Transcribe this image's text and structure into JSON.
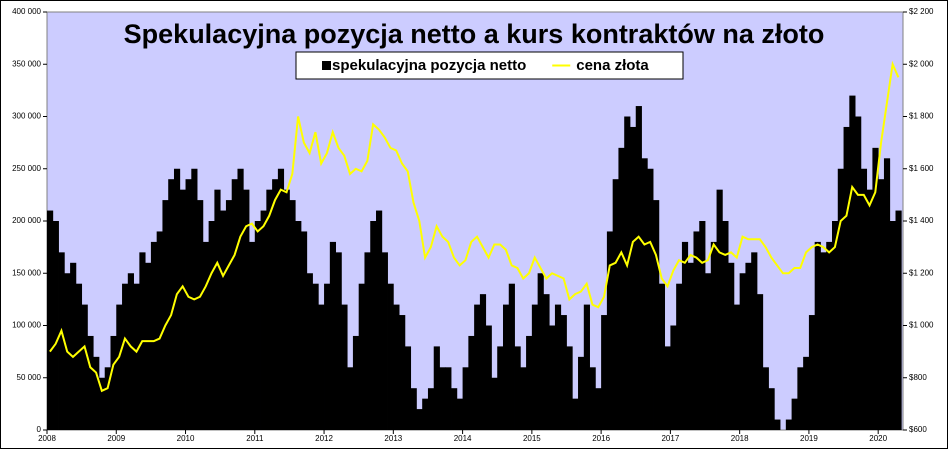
{
  "chart_data": {
    "type": "bar-line",
    "title": "Spekulacyjna pozycja netto a kurs kontraktów na złoto",
    "legend": "top",
    "categories": [
      "2008",
      null,
      null,
      null,
      null,
      null,
      null,
      null,
      null,
      null,
      null,
      null,
      "2009",
      null,
      null,
      null,
      null,
      null,
      null,
      null,
      null,
      null,
      null,
      null,
      "2010",
      null,
      null,
      null,
      null,
      null,
      null,
      null,
      null,
      null,
      null,
      null,
      "2011",
      null,
      null,
      null,
      null,
      null,
      null,
      null,
      null,
      null,
      null,
      null,
      "2012",
      null,
      null,
      null,
      null,
      null,
      null,
      null,
      null,
      null,
      null,
      null,
      "2013",
      null,
      null,
      null,
      null,
      null,
      null,
      null,
      null,
      null,
      null,
      null,
      "2014",
      null,
      null,
      null,
      null,
      null,
      null,
      null,
      null,
      null,
      null,
      null,
      "2015",
      null,
      null,
      null,
      null,
      null,
      null,
      null,
      null,
      null,
      null,
      null,
      "2016",
      null,
      null,
      null,
      null,
      null,
      null,
      null,
      null,
      null,
      null,
      null,
      "2017",
      null,
      null,
      null,
      null,
      null,
      null,
      null,
      null,
      null,
      null,
      null,
      "2018",
      null,
      null,
      null,
      null,
      null,
      null,
      null,
      null,
      null,
      null,
      null,
      "2019",
      null,
      null,
      null,
      null,
      null,
      null,
      null,
      null,
      null,
      null,
      null,
      "2020",
      null,
      null,
      null
    ],
    "series": [
      {
        "name": "spekulacyjna pozycja netto",
        "color": "#000000",
        "kind": "bar",
        "values": [
          210000,
          200000,
          170000,
          150000,
          160000,
          140000,
          120000,
          90000,
          70000,
          50000,
          60000,
          90000,
          120000,
          140000,
          150000,
          140000,
          170000,
          160000,
          180000,
          190000,
          220000,
          240000,
          250000,
          230000,
          240000,
          250000,
          220000,
          180000,
          200000,
          230000,
          210000,
          220000,
          240000,
          250000,
          230000,
          180000,
          200000,
          210000,
          230000,
          240000,
          250000,
          230000,
          220000,
          200000,
          190000,
          150000,
          140000,
          120000,
          140000,
          180000,
          170000,
          120000,
          60000,
          90000,
          140000,
          170000,
          200000,
          210000,
          170000,
          140000,
          120000,
          110000,
          80000,
          40000,
          20000,
          30000,
          40000,
          80000,
          60000,
          60000,
          40000,
          30000,
          60000,
          90000,
          120000,
          130000,
          100000,
          50000,
          80000,
          120000,
          140000,
          80000,
          60000,
          90000,
          120000,
          150000,
          130000,
          100000,
          120000,
          110000,
          80000,
          30000,
          70000,
          120000,
          60000,
          40000,
          110000,
          190000,
          240000,
          270000,
          300000,
          290000,
          310000,
          260000,
          250000,
          220000,
          140000,
          80000,
          100000,
          140000,
          180000,
          160000,
          190000,
          200000,
          150000,
          180000,
          230000,
          200000,
          160000,
          120000,
          150000,
          160000,
          170000,
          130000,
          60000,
          40000,
          10000,
          0,
          10000,
          30000,
          60000,
          70000,
          110000,
          180000,
          170000,
          180000,
          200000,
          250000,
          290000,
          320000,
          300000,
          250000,
          230000,
          270000,
          240000,
          260000,
          200000,
          210000
        ]
      },
      {
        "name": "cena złota",
        "color": "#ffff00",
        "kind": "line",
        "axis": "y2",
        "values": [
          900,
          930,
          980,
          900,
          880,
          900,
          920,
          840,
          820,
          750,
          760,
          850,
          880,
          950,
          920,
          900,
          940,
          940,
          940,
          950,
          1000,
          1040,
          1120,
          1150,
          1110,
          1100,
          1110,
          1150,
          1200,
          1240,
          1190,
          1230,
          1270,
          1340,
          1380,
          1390,
          1360,
          1380,
          1420,
          1480,
          1520,
          1510,
          1580,
          1800,
          1700,
          1660,
          1740,
          1620,
          1660,
          1740,
          1680,
          1650,
          1580,
          1600,
          1590,
          1630,
          1770,
          1750,
          1720,
          1680,
          1670,
          1620,
          1590,
          1470,
          1400,
          1260,
          1300,
          1380,
          1340,
          1320,
          1260,
          1230,
          1250,
          1320,
          1340,
          1300,
          1260,
          1310,
          1310,
          1290,
          1230,
          1220,
          1180,
          1200,
          1260,
          1220,
          1180,
          1200,
          1190,
          1180,
          1100,
          1120,
          1130,
          1160,
          1080,
          1070,
          1110,
          1230,
          1240,
          1280,
          1230,
          1320,
          1340,
          1310,
          1320,
          1270,
          1180,
          1150,
          1210,
          1250,
          1240,
          1270,
          1260,
          1240,
          1250,
          1310,
          1280,
          1270,
          1280,
          1260,
          1340,
          1330,
          1330,
          1330,
          1300,
          1260,
          1230,
          1200,
          1200,
          1220,
          1220,
          1280,
          1300,
          1310,
          1300,
          1280,
          1300,
          1400,
          1420,
          1530,
          1500,
          1500,
          1460,
          1510,
          1700,
          1850,
          2000,
          1950
        ]
      }
    ],
    "ylim": [
      0,
      400000
    ],
    "yticks": [
      0,
      {
        "value": 50000,
        "label": "50 000"
      },
      {
        "value": 100000,
        "label": "100 000"
      },
      {
        "value": 150000,
        "label": "150 000"
      },
      {
        "value": 200000,
        "label": "200 000"
      },
      {
        "value": 250000,
        "label": "250 000"
      },
      {
        "value": 300000,
        "label": "300 000"
      },
      {
        "value": 350000,
        "label": "350 000"
      },
      {
        "value": 400000,
        "label": "400 000"
      }
    ],
    "y2lim": [
      600,
      2200
    ],
    "y2ticks": [
      {
        "value": 600,
        "label": "$600"
      },
      {
        "value": 800,
        "label": "$800"
      },
      {
        "value": 1000,
        "label": "$1 000"
      },
      {
        "value": 1200,
        "label": "$1 200"
      },
      {
        "value": 1400,
        "label": "$1 400"
      },
      {
        "value": 1600,
        "label": "$1 600"
      },
      {
        "value": 1800,
        "label": "$1 800"
      },
      {
        "value": 2000,
        "label": "$2 000"
      },
      {
        "value": 2200,
        "label": "$2 200"
      }
    ]
  }
}
